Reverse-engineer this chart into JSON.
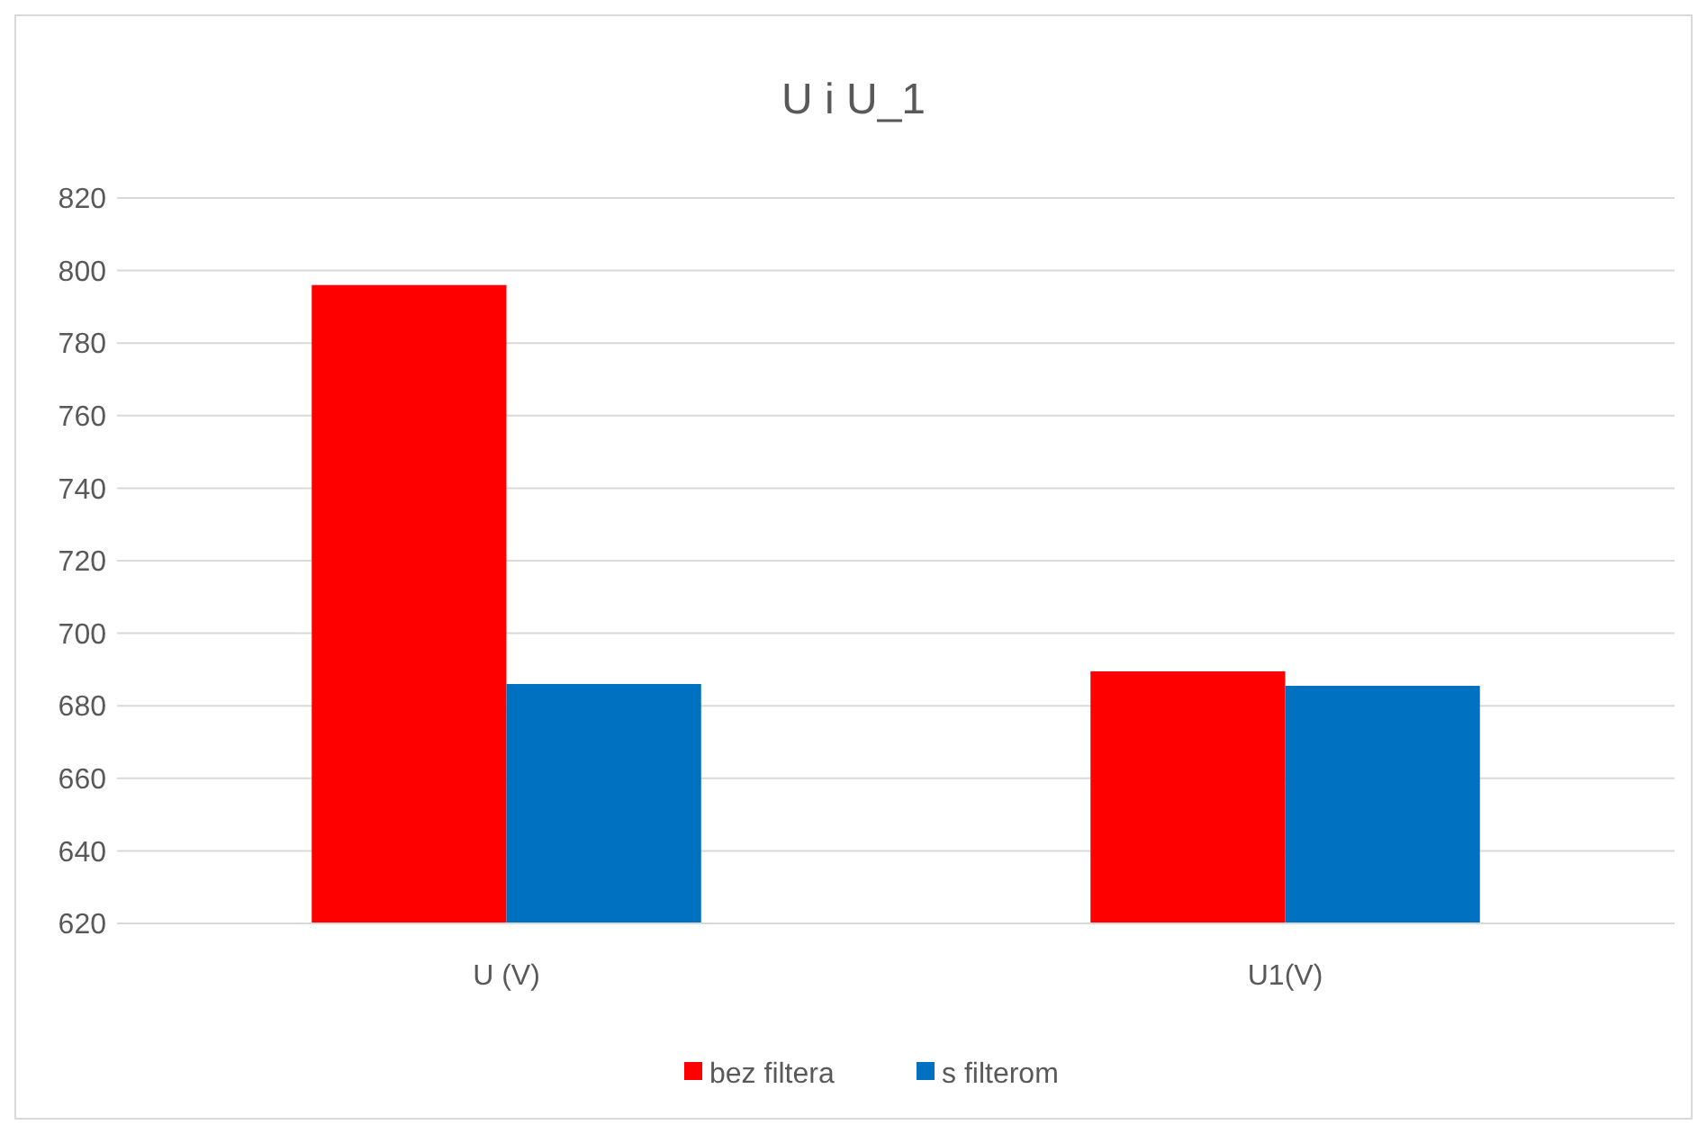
{
  "chart_data": {
    "type": "bar",
    "title": "U i U_1",
    "categories": [
      "U (V)",
      "U1(V)"
    ],
    "series": [
      {
        "name": "bez filtera",
        "color": "#ff0000",
        "values": [
          796,
          689.5
        ]
      },
      {
        "name": "s filterom",
        "color": "#0070c0",
        "values": [
          686,
          685.5
        ]
      }
    ],
    "ylim": [
      620,
      820
    ],
    "yticks": [
      620,
      640,
      660,
      680,
      700,
      720,
      740,
      760,
      780,
      800,
      820
    ],
    "grid": "y",
    "legend": "bottom"
  }
}
